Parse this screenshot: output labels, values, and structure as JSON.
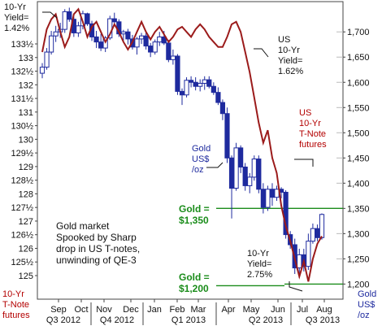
{
  "chart_data": {
    "type": "candlestick+line",
    "title": "",
    "left_axis": {
      "label": "10-Yr\nT-Note\nfutures",
      "ticks": [
        125,
        125.5,
        126,
        126.5,
        127,
        127.5,
        128,
        128.5,
        129,
        129.5,
        130,
        130.5,
        131,
        131.5,
        132,
        132.5,
        133,
        133.5
      ],
      "tick_labels": [
        "125",
        "125½",
        "126",
        "126½",
        "127",
        "127½",
        "128",
        "128½",
        "129",
        "129½",
        "130",
        "130½",
        "131",
        "131½",
        "132",
        "132½",
        "133",
        "133½"
      ]
    },
    "right_axis": {
      "label": "Gold\nUS$\n/oz",
      "ticks": [
        1200,
        1250,
        1300,
        1350,
        1400,
        1450,
        1500,
        1550,
        1600,
        1650,
        1700
      ],
      "tick_labels": [
        "1,200",
        "1,250",
        "1,300",
        "1,350",
        "1,400",
        "1,450",
        "1,500",
        "1,550",
        "1,600",
        "1,650",
        "1,700"
      ],
      "ylim": [
        1170,
        1760
      ]
    },
    "x_axis": {
      "months": [
        "Sep",
        "Oct",
        "Nov",
        "Dec",
        "Jan",
        "Feb",
        "Mar",
        "Apr",
        "May",
        "Jun",
        "Jul",
        "Aug"
      ],
      "quarters": [
        "Q3 2012",
        "Q4 2012",
        "Q1 2013",
        "Q2 2013",
        "Q3 2013"
      ]
    },
    "gold_candles": [
      [
        1618,
        1638,
        1608,
        1630
      ],
      [
        1630,
        1668,
        1625,
        1660
      ],
      [
        1660,
        1702,
        1655,
        1692
      ],
      [
        1692,
        1712,
        1680,
        1700
      ],
      [
        1700,
        1718,
        1688,
        1705
      ],
      [
        1705,
        1745,
        1698,
        1740
      ],
      [
        1740,
        1748,
        1720,
        1725
      ],
      [
        1725,
        1730,
        1690,
        1698
      ],
      [
        1698,
        1720,
        1690,
        1712
      ],
      [
        1712,
        1742,
        1705,
        1736
      ],
      [
        1736,
        1738,
        1712,
        1716
      ],
      [
        1716,
        1722,
        1682,
        1690
      ],
      [
        1690,
        1702,
        1668,
        1680
      ],
      [
        1680,
        1696,
        1662,
        1668
      ],
      [
        1668,
        1692,
        1660,
        1688
      ],
      [
        1688,
        1732,
        1684,
        1726
      ],
      [
        1726,
        1738,
        1712,
        1720
      ],
      [
        1720,
        1725,
        1690,
        1696
      ],
      [
        1696,
        1704,
        1682,
        1700
      ],
      [
        1700,
        1706,
        1675,
        1686
      ],
      [
        1686,
        1694,
        1665,
        1670
      ],
      [
        1670,
        1690,
        1655,
        1686
      ],
      [
        1686,
        1698,
        1676,
        1692
      ],
      [
        1692,
        1700,
        1665,
        1672
      ],
      [
        1672,
        1678,
        1650,
        1660
      ],
      [
        1660,
        1685,
        1655,
        1680
      ],
      [
        1680,
        1700,
        1672,
        1690
      ],
      [
        1690,
        1702,
        1674,
        1678
      ],
      [
        1678,
        1684,
        1640,
        1645
      ],
      [
        1645,
        1665,
        1635,
        1652
      ],
      [
        1652,
        1656,
        1575,
        1582
      ],
      [
        1582,
        1588,
        1555,
        1575
      ],
      [
        1575,
        1610,
        1570,
        1604
      ],
      [
        1604,
        1612,
        1590,
        1600
      ],
      [
        1600,
        1610,
        1584,
        1592
      ],
      [
        1592,
        1606,
        1582,
        1598
      ],
      [
        1598,
        1612,
        1585,
        1605
      ],
      [
        1605,
        1612,
        1588,
        1592
      ],
      [
        1592,
        1600,
        1575,
        1580
      ],
      [
        1580,
        1590,
        1555,
        1560
      ],
      [
        1560,
        1566,
        1525,
        1538
      ],
      [
        1538,
        1550,
        1440,
        1450
      ],
      [
        1450,
        1455,
        1330,
        1390
      ],
      [
        1390,
        1480,
        1385,
        1470
      ],
      [
        1470,
        1475,
        1420,
        1432
      ],
      [
        1432,
        1440,
        1385,
        1395
      ],
      [
        1395,
        1420,
        1380,
        1412
      ],
      [
        1412,
        1455,
        1405,
        1448
      ],
      [
        1448,
        1455,
        1380,
        1388
      ],
      [
        1388,
        1400,
        1340,
        1352
      ],
      [
        1352,
        1395,
        1345,
        1388
      ],
      [
        1388,
        1400,
        1355,
        1372
      ],
      [
        1372,
        1395,
        1365,
        1388
      ],
      [
        1388,
        1392,
        1370,
        1382
      ],
      [
        1382,
        1386,
        1290,
        1298
      ],
      [
        1298,
        1305,
        1270,
        1278
      ],
      [
        1278,
        1290,
        1220,
        1232
      ],
      [
        1232,
        1270,
        1212,
        1258
      ],
      [
        1258,
        1270,
        1225,
        1235
      ],
      [
        1235,
        1300,
        1228,
        1285
      ],
      [
        1285,
        1320,
        1280,
        1310
      ],
      [
        1310,
        1318,
        1285,
        1292
      ],
      [
        1292,
        1340,
        1288,
        1338
      ]
    ],
    "yield_series": {
      "name": "US 10-Yr Yield",
      "start_value": "1.42%",
      "mid_value": "1.62%",
      "end_value": "2.75%",
      "points_in_gold_scale": [
        1660,
        1705,
        1725,
        1735,
        1700,
        1670,
        1690,
        1735,
        1745,
        1720,
        1690,
        1710,
        1720,
        1700,
        1680,
        1695,
        1715,
        1700,
        1680,
        1665,
        1680,
        1700,
        1720,
        1700,
        1685,
        1700,
        1710,
        1695,
        1680,
        1690,
        1705,
        1710,
        1700,
        1690,
        1705,
        1715,
        1705,
        1690,
        1680,
        1670,
        1670,
        1690,
        1715,
        1720,
        1700,
        1660,
        1620,
        1570,
        1520,
        1480,
        1505,
        1450,
        1420,
        1355,
        1315,
        1285,
        1250,
        1215,
        1245,
        1205,
        1250,
        1280,
        1295
      ]
    },
    "reference_lines": [
      {
        "label": "Gold =\n$1,350",
        "value": 1350
      },
      {
        "label": "Gold =\n$1,200",
        "value": 1200
      }
    ],
    "annotations": {
      "top_left": "10-Yr\nYield=\n1.42%",
      "mid_right": "US\n10-Yr\nYield=\n1.62%",
      "gold_label": "Gold\nUS$\n/oz",
      "tnote_label": "US\n10-Yr\nT-Note\nfutures",
      "bottom_yield": "10-Yr\nYield=\n2.75%",
      "story": "Gold market\nSpooked by Sharp\ndrop in US T-notes,\nunwinding of QE-3"
    }
  }
}
